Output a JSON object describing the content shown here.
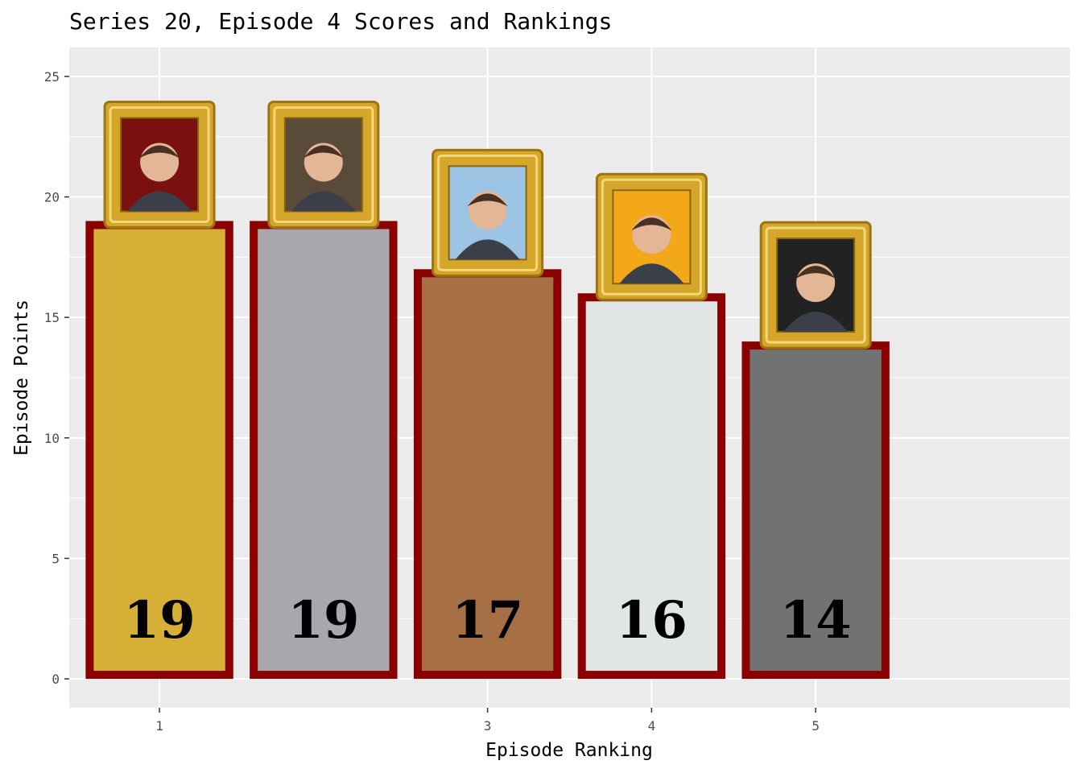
{
  "chart_data": {
    "type": "bar",
    "title": "Series 20, Episode 4 Scores and Rankings",
    "xlabel": "Episode Ranking",
    "ylabel": "Episode Points",
    "ylim": [
      -1.2,
      26.2
    ],
    "xlim": [
      0.45,
      6.55
    ],
    "yticks": [
      0,
      5,
      10,
      15,
      20,
      25
    ],
    "xticks": [
      1,
      3,
      4,
      5
    ],
    "grid": true,
    "legend": "none",
    "bars": [
      {
        "x": 1,
        "value": 19,
        "label": "19",
        "color": "#D6AF36",
        "portrait": "contestant-portrait-icon",
        "portrait_bg": "#7a1010"
      },
      {
        "x": 2,
        "value": 19,
        "label": "19",
        "color": "#A7A7AD",
        "portrait": "contestant-portrait-icon",
        "portrait_bg": "#5a4a3a"
      },
      {
        "x": 3,
        "value": 17,
        "label": "17",
        "color": "#A77044",
        "portrait": "contestant-portrait-icon",
        "portrait_bg": "#9cc4e4"
      },
      {
        "x": 4,
        "value": 16,
        "label": "16",
        "color": "#E0E5E5",
        "portrait": "contestant-portrait-icon",
        "portrait_bg": "#f3a81a"
      },
      {
        "x": 5,
        "value": 14,
        "label": "14",
        "color": "#727272",
        "portrait": "contestant-portrait-icon",
        "portrait_bg": "#222222"
      }
    ],
    "bar_outline_color": "#8B0000",
    "frame_color": "#D4A62A",
    "panel_color": "#EBEBEB"
  }
}
